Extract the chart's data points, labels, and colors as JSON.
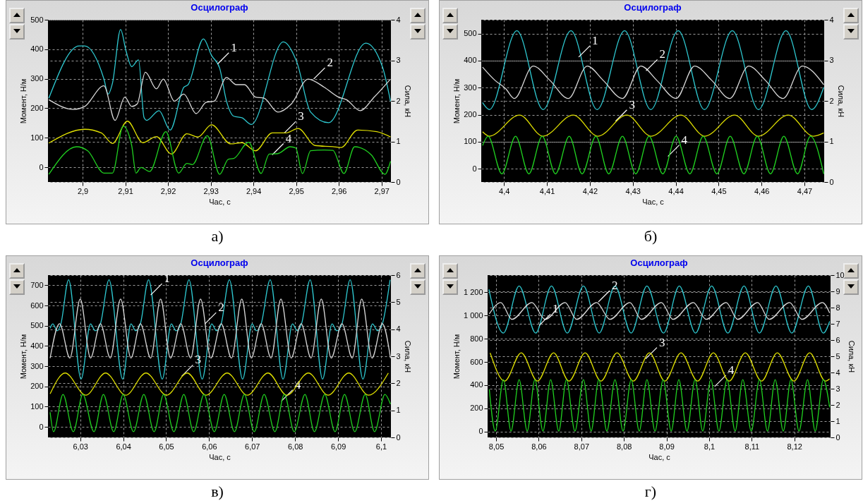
{
  "chart_data": [
    {
      "type": "line",
      "title": "Осцилограф",
      "xlabel": "Час, с",
      "ylabel": "Момент, Н/м",
      "y2label": "Сила, кН",
      "grid": true,
      "line_style": "solid",
      "xlim": [
        2.8919,
        2.9722
      ],
      "xticks": [
        {
          "value": 2.9,
          "label": "2,9"
        },
        {
          "value": 2.91,
          "label": "2,91"
        },
        {
          "value": 2.92,
          "label": "2,92"
        },
        {
          "value": 2.93,
          "label": "2,93"
        },
        {
          "value": 2.94,
          "label": "2,94"
        },
        {
          "value": 2.95,
          "label": "2,95"
        },
        {
          "value": 2.96,
          "label": "2,96"
        },
        {
          "value": 2.97,
          "label": "2,97"
        }
      ],
      "ylim": [
        -50,
        500
      ],
      "yticks": [
        0,
        100,
        200,
        300,
        400,
        500
      ],
      "y2lim": [
        0,
        4
      ],
      "y2ticks": [
        0,
        1,
        2,
        3,
        4
      ],
      "series": [
        {
          "color": "#2ec8d0",
          "x": [
            2.8921,
            2.8992,
            2.9005,
            2.905,
            2.906,
            2.907,
            2.9089,
            2.9102,
            2.9115,
            2.9131,
            2.9144,
            2.915,
            2.9179,
            2.9205,
            2.9237,
            2.9247,
            2.9283,
            2.9302,
            2.9321,
            2.9337,
            2.9354,
            2.9373,
            2.9395,
            2.947,
            2.9502,
            2.9534,
            2.9576,
            2.9663,
            2.9702,
            2.9721
          ],
          "values": [
            234,
            411,
            411,
            299,
            248,
            285,
            467,
            393,
            341,
            364,
            168,
            159,
            192,
            126,
            271,
            280,
            435,
            379,
            336,
            224,
            173,
            168,
            145,
            425,
            355,
            187,
            151,
            421,
            341,
            224
          ]
        },
        {
          "color": "#d8d8d8",
          "x": [
            2.8921,
            2.8979,
            2.9005,
            2.905,
            2.9076,
            2.9099,
            2.9115,
            2.9128,
            2.9147,
            2.9173,
            2.9189,
            2.9215,
            2.9237,
            2.9266,
            2.9289,
            2.9308,
            2.9337,
            2.936,
            2.9379,
            2.9405,
            2.9425,
            2.9457,
            2.9489,
            2.9528,
            2.9566,
            2.9599,
            2.9618,
            2.965,
            2.9683,
            2.9721
          ],
          "values": [
            229,
            196,
            206,
            276,
            159,
            238,
            206,
            215,
            322,
            266,
            299,
            224,
            248,
            182,
            220,
            224,
            304,
            280,
            280,
            238,
            234,
            187,
            215,
            299,
            271,
            238,
            229,
            192,
            238,
            299
          ]
        },
        {
          "color": "#e0e000",
          "axis": "y2",
          "x": [
            2.8921,
            2.9005,
            2.9044,
            2.907,
            2.9105,
            2.9141,
            2.9173,
            2.9208,
            2.9244,
            2.927,
            2.9302,
            2.9347,
            2.9373,
            2.9405,
            2.9444,
            2.9476,
            2.9505,
            2.9544,
            2.9586,
            2.9605,
            2.9644,
            2.9689,
            2.9721
          ],
          "values": [
            0.96,
            1.3,
            1.21,
            0.95,
            1.5,
            0.97,
            1.12,
            0.69,
            1.19,
            1.11,
            1.41,
            0.94,
            0.97,
            0.77,
            1.21,
            1.21,
            1.32,
            0.9,
            0.87,
            0.85,
            1.28,
            1.24,
            1.11
          ]
        },
        {
          "color": "#20d020",
          "axis": "y2",
          "x": [
            2.8921,
            2.8986,
            2.9012,
            2.905,
            2.907,
            2.9095,
            2.9115,
            2.9125,
            2.9137,
            2.9157,
            2.9195,
            2.9225,
            2.9244,
            2.9257,
            2.9292,
            2.9321,
            2.9341,
            2.9354,
            2.9389,
            2.9418,
            2.9437,
            2.9457,
            2.9486,
            2.9499,
            2.9515,
            2.9534,
            2.9566,
            2.9586,
            2.9612,
            2.9637,
            2.9676,
            2.9708,
            2.9721
          ],
          "values": [
            0.19,
            0.87,
            0.77,
            0.22,
            0.22,
            1.38,
            0.9,
            0.22,
            0.36,
            0.26,
            1.24,
            0.22,
            0.46,
            0.43,
            1.14,
            0.19,
            0.56,
            0.58,
            0.98,
            0.21,
            0.69,
            0.7,
            0.87,
            0.84,
            0.21,
            0.77,
            0.79,
            0.78,
            0.21,
            0.87,
            0.67,
            0.19,
            0.51
          ]
        }
      ],
      "annotations": [
        {
          "text": "1",
          "x": 2.9316,
          "y": 350
        },
        {
          "text": "2",
          "x": 2.9541,
          "y": 299
        },
        {
          "text": "3",
          "x": 2.9473,
          "y": 117
        },
        {
          "text": "4",
          "x": 2.9444,
          "y": 42
        },
        "а)"
      ]
    },
    {
      "type": "line",
      "title": "Осцилограф",
      "xlabel": "Час, с",
      "ylabel": "Момент, Н/м",
      "y2label": "Сила, кН",
      "grid": true,
      "line_style": "solid",
      "xlim": [
        4.3947,
        4.4746
      ],
      "xticks": [
        {
          "value": 4.4,
          "label": "4,4"
        },
        {
          "value": 4.41,
          "label": "4,41"
        },
        {
          "value": 4.42,
          "label": "4,42"
        },
        {
          "value": 4.43,
          "label": "4,43"
        },
        {
          "value": 4.44,
          "label": "4,44"
        },
        {
          "value": 4.45,
          "label": "4,45"
        },
        {
          "value": 4.46,
          "label": "4,46"
        },
        {
          "value": 4.47,
          "label": "4,47"
        }
      ],
      "ylim": [
        -49,
        551
      ],
      "yticks": [
        0,
        100,
        200,
        300,
        400,
        500
      ],
      "y2lim": [
        0,
        4
      ],
      "y2ticks": [
        0,
        1,
        2,
        3,
        4
      ],
      "series": [
        {
          "color": "#2ec8d0",
          "x": [
            4.395,
            4.3966,
            4.403,
            4.4091,
            4.4156,
            4.4217,
            4.4281,
            4.4342,
            4.4406,
            4.4467,
            4.4532,
            4.4593,
            4.4657,
            4.4717,
            4.4745
          ],
          "values": [
            245,
            219,
            510,
            219,
            510,
            219,
            510,
            219,
            510,
            219,
            510,
            219,
            510,
            219,
            301
          ]
        },
        {
          "color": "#d8d8d8",
          "x": [
            4.395,
            4.3979,
            4.4004,
            4.4024,
            4.4068,
            4.4107,
            4.415,
            4.4194,
            4.4231,
            4.4276,
            4.4319,
            4.4356,
            4.4401,
            4.4444,
            4.4484,
            4.4526,
            4.457,
            4.4609,
            4.465,
            4.4695,
            4.4745
          ],
          "values": [
            376,
            327,
            296,
            260,
            380,
            327,
            260,
            380,
            327,
            260,
            380,
            327,
            260,
            380,
            327,
            260,
            380,
            327,
            260,
            380,
            311
          ]
        },
        {
          "color": "#e0e000",
          "axis": "y2",
          "x": [
            4.395,
            4.3966,
            4.4036,
            4.4091,
            4.4161,
            4.4219,
            4.4286,
            4.4343,
            4.4412,
            4.4468,
            4.4537,
            4.4593,
            4.4662,
            4.4721,
            4.4745
          ],
          "values": [
            1.24,
            1.13,
            1.65,
            1.13,
            1.65,
            1.13,
            1.65,
            1.13,
            1.65,
            1.13,
            1.65,
            1.13,
            1.65,
            1.13,
            1.21
          ]
        },
        {
          "color": "#20d020",
          "axis": "y2",
          "x": [
            4.395,
            4.3963,
            4.3995,
            4.4027,
            4.4058,
            4.4089,
            4.412,
            4.4152,
            4.4182,
            4.4214,
            4.4244,
            4.4276,
            4.4307,
            4.4338,
            4.437,
            4.4401,
            4.4433,
            4.4464,
            4.4496,
            4.4527,
            4.4559,
            4.459,
            4.4621,
            4.4652,
            4.4684,
            4.4714,
            4.4745
          ],
          "values": [
            0.9,
            1.13,
            0.2,
            1.13,
            0.2,
            1.13,
            0.2,
            1.13,
            0.2,
            1.13,
            0.2,
            1.13,
            0.2,
            1.13,
            0.2,
            1.13,
            0.2,
            1.13,
            0.2,
            1.13,
            0.2,
            1.13,
            0.2,
            1.13,
            0.2,
            1.13,
            0.2
          ]
        }
      ],
      "annotations": [
        {
          "text": "1",
          "x": 4.4174,
          "y": 413
        },
        {
          "text": "2",
          "x": 4.4331,
          "y": 362
        },
        {
          "text": "3",
          "x": 4.426,
          "y": 176
        },
        {
          "text": "4",
          "x": 4.4382,
          "y": 46
        },
        "б)"
      ]
    },
    {
      "type": "line",
      "title": "Осцилограф",
      "xlabel": "Час, с",
      "ylabel": "Момент, Н/м",
      "y2label": "Сила, кН",
      "grid": true,
      "line_style": "solid",
      "xlim": [
        6.0225,
        6.1023
      ],
      "xticks": [
        {
          "value": 6.03,
          "label": "6,03"
        },
        {
          "value": 6.04,
          "label": "6,04"
        },
        {
          "value": 6.05,
          "label": "6,05"
        },
        {
          "value": 6.06,
          "label": "6,06"
        },
        {
          "value": 6.07,
          "label": "6,07"
        },
        {
          "value": 6.08,
          "label": "6,08"
        },
        {
          "value": 6.09,
          "label": "6,09"
        },
        {
          "value": 6.1,
          "label": "6,1"
        }
      ],
      "ylim": [
        -52,
        750
      ],
      "yticks": [
        0,
        100,
        200,
        300,
        400,
        500,
        600,
        700
      ],
      "y2lim": [
        0,
        6
      ],
      "y2ticks": [
        0,
        1,
        2,
        3,
        4,
        5,
        6
      ],
      "series": [
        {
          "color": "#2ec8d0",
          "x": [
            6.023,
            6.0236,
            6.0247,
            6.0255,
            6.0273,
            6.0302,
            6.0324,
            6.0335,
            6.0347,
            6.0367,
            6.0399,
            6.0418,
            6.0429,
            6.044,
            6.0459,
            6.0491,
            6.0512,
            6.0523,
            6.0534,
            6.0553,
            6.0584,
            6.0606,
            6.0617,
            6.0628,
            6.0647,
            6.0678,
            6.07,
            6.071,
            6.0721,
            6.0742,
            6.0772,
            6.0794,
            6.0805,
            6.0815,
            6.0835,
            6.0864,
            6.0886,
            6.0897,
            6.0909,
            6.0928,
            6.0958,
            6.098,
            6.0992,
            6.1003,
            6.1021
          ],
          "values": [
            488,
            509,
            475,
            509,
            727,
            236,
            509,
            475,
            509,
            727,
            236,
            509,
            475,
            509,
            727,
            236,
            509,
            475,
            509,
            727,
            236,
            509,
            475,
            509,
            727,
            236,
            509,
            475,
            509,
            727,
            236,
            509,
            475,
            509,
            727,
            236,
            509,
            475,
            509,
            727,
            236,
            509,
            475,
            509,
            727
          ]
        },
        {
          "color": "#d8d8d8",
          "x": [
            6.023,
            6.0252,
            6.0276,
            6.03,
            6.0324,
            6.0347,
            6.037,
            6.0394,
            6.0418,
            6.044,
            6.0464,
            6.0487,
            6.051,
            6.0534,
            6.0557,
            6.058,
            6.0604,
            6.0628,
            6.0652,
            6.0676,
            6.0698,
            6.0721,
            6.0744,
            6.0767,
            6.0791,
            6.0814,
            6.0837,
            6.0861,
            6.0884,
            6.0909,
            6.0933,
            6.0955,
            6.0979,
            6.1003,
            6.1022
          ],
          "values": [
            340,
            510,
            340,
            632,
            340,
            510,
            340,
            632,
            340,
            510,
            340,
            632,
            340,
            510,
            340,
            632,
            340,
            510,
            340,
            632,
            340,
            510,
            340,
            632,
            340,
            510,
            340,
            632,
            340,
            510,
            340,
            632,
            340,
            510,
            340
          ]
        },
        {
          "color": "#e0e000",
          "axis": "y2",
          "x": [
            6.023,
            6.0265,
            6.0313,
            6.0359,
            6.0406,
            6.0453,
            6.0501,
            6.0549,
            6.0593,
            6.0642,
            6.0689,
            6.0737,
            6.0781,
            6.0831,
            6.0877,
            6.0925,
            6.0971,
            6.1017
          ],
          "values": [
            1.61,
            2.38,
            1.56,
            2.38,
            1.56,
            2.38,
            1.56,
            2.38,
            1.56,
            2.38,
            1.56,
            2.38,
            1.56,
            2.38,
            1.56,
            2.38,
            1.56,
            2.38
          ]
        },
        {
          "color": "#20d020",
          "axis": "y2",
          "x": [
            6.023,
            6.0238,
            6.026,
            6.0284,
            6.0306,
            6.0332,
            6.0354,
            6.0378,
            6.04,
            6.0424,
            6.0448,
            6.0472,
            6.0494,
            6.0518,
            6.0541,
            6.0564,
            6.0588,
            6.0612,
            6.0635,
            6.0659,
            6.0682,
            6.0705,
            6.0728,
            6.0753,
            6.0775,
            6.0798,
            6.0823,
            6.0845,
            6.0869,
            6.0893,
            6.0915,
            6.0939,
            6.0963,
            6.0985,
            6.1009,
            6.1022
          ],
          "values": [
            0.93,
            0.21,
            1.59,
            0.21,
            1.59,
            0.21,
            1.59,
            0.21,
            1.59,
            0.21,
            1.59,
            0.21,
            1.59,
            0.21,
            1.59,
            0.21,
            1.59,
            0.21,
            1.59,
            0.21,
            1.59,
            0.21,
            1.59,
            0.21,
            1.59,
            0.21,
            1.59,
            0.21,
            1.59,
            0.21,
            1.59,
            0.21,
            1.59,
            0.21,
            1.59,
            1.23
          ]
        }
      ],
      "annotations": [
        {
          "text": "1",
          "x": 6.0464,
          "y": 652
        },
        {
          "text": "2",
          "x": 6.059,
          "y": 509
        },
        {
          "text": "3",
          "x": 6.0536,
          "y": 250
        },
        {
          "text": "4",
          "x": 6.0768,
          "y": 127
        },
        "в)"
      ]
    },
    {
      "type": "line",
      "title": "Осцилограф",
      "xlabel": "Час, с",
      "ylabel": "Момент, Н/м",
      "y2label": "Сила, кН",
      "grid": true,
      "line_style": "solid",
      "xlim": [
        8.048,
        8.1285
      ],
      "xticks": [
        {
          "value": 8.05,
          "label": "8,05"
        },
        {
          "value": 8.06,
          "label": "8,06"
        },
        {
          "value": 8.07,
          "label": "8,07"
        },
        {
          "value": 8.08,
          "label": "8,08"
        },
        {
          "value": 8.09,
          "label": "8,09"
        },
        {
          "value": 8.1,
          "label": "8,1"
        },
        {
          "value": 8.11,
          "label": "8,11"
        },
        {
          "value": 8.12,
          "label": "8,12"
        }
      ],
      "ylim": [
        -50,
        1348
      ],
      "yticks": [
        0,
        200,
        400,
        600,
        800,
        {
          "value": 1000,
          "label": "1 000"
        },
        {
          "value": 1200,
          "label": "1 200"
        }
      ],
      "y2lim": [
        0,
        10
      ],
      "y2ticks": [
        0,
        1,
        2,
        3,
        4,
        5,
        6,
        7,
        8,
        9,
        10
      ],
      "series": [
        {
          "color": "#2ec8d0",
          "x": [
            8.0483,
            8.0517,
            8.0554,
            8.0593,
            8.063,
            8.0667,
            8.0705,
            8.0742,
            8.0779,
            8.0817,
            8.0854,
            8.0893,
            8.093,
            8.0968,
            8.1006,
            8.1044,
            8.1082,
            8.1118,
            8.1157,
            8.1194,
            8.1233,
            8.1268,
            8.1283
          ],
          "values": [
            1225,
            849,
            1254,
            849,
            1254,
            849,
            1254,
            849,
            1254,
            849,
            1254,
            849,
            1254,
            849,
            1254,
            849,
            1254,
            849,
            1254,
            849,
            1254,
            849,
            950
          ]
        },
        {
          "color": "#d8d8d8",
          "x": [
            8.0484,
            8.0511,
            8.0537,
            8.0584,
            8.0615,
            8.0662,
            8.0689,
            8.0736,
            8.0767,
            8.0814,
            8.0841,
            8.0888,
            8.0915,
            8.0963,
            8.0993,
            8.104,
            8.1067,
            8.1114,
            8.1141,
            8.1189,
            8.1218,
            8.1266,
            8.1283
          ],
          "values": [
            1014,
            1112,
            967,
            1112,
            967,
            1112,
            967,
            1112,
            967,
            1112,
            967,
            1112,
            967,
            1112,
            967,
            1112,
            967,
            1112,
            967,
            1112,
            967,
            1112,
            1022
          ]
        },
        {
          "color": "#e0e000",
          "axis": "y2",
          "x": [
            8.0486,
            8.052,
            8.0559,
            8.0597,
            8.0635,
            8.0671,
            8.0709,
            8.0746,
            8.0784,
            8.0822,
            8.086,
            8.0896,
            8.0934,
            8.0973,
            8.101,
            8.1047,
            8.1085,
            8.1123,
            8.116,
            8.1199,
            8.1236,
            8.1273,
            8.1283
          ],
          "values": [
            5.21,
            3.47,
            5.21,
            3.47,
            5.21,
            3.47,
            5.21,
            3.47,
            5.21,
            3.47,
            5.21,
            3.47,
            5.21,
            3.47,
            5.21,
            3.47,
            5.21,
            3.47,
            5.21,
            3.47,
            5.21,
            3.47,
            3.61
          ]
        },
        {
          "color": "#20d020",
          "axis": "y2",
          "x": [
            8.0484,
            8.0498,
            8.0517,
            8.0535,
            8.0554,
            8.0573,
            8.0591,
            8.061,
            8.0628,
            8.0647,
            8.0665,
            8.0685,
            8.0705,
            8.0723,
            8.0741,
            8.076,
            8.0779,
            8.0798,
            8.0817,
            8.0836,
            8.0854,
            8.0873,
            8.0892,
            8.0911,
            8.0929,
            8.0948,
            8.0967,
            8.0985,
            8.1004,
            8.1023,
            8.1042,
            8.1061,
            8.1079,
            8.1099,
            8.1118,
            8.1137,
            8.1155,
            8.1174,
            8.1192,
            8.1211,
            8.1231,
            8.1249,
            8.1268,
            8.1283
          ],
          "values": [
            2.96,
            0.39,
            3.56,
            0.39,
            3.56,
            0.39,
            3.56,
            0.39,
            3.56,
            0.39,
            3.56,
            0.39,
            3.56,
            0.39,
            3.56,
            0.39,
            3.56,
            0.39,
            3.56,
            0.39,
            3.56,
            0.39,
            3.56,
            0.39,
            3.56,
            0.39,
            3.56,
            0.39,
            3.56,
            0.39,
            3.56,
            0.39,
            3.56,
            0.39,
            3.56,
            0.39,
            3.56,
            0.39,
            3.56,
            0.39,
            3.56,
            0.39,
            3.56,
            1.85
          ]
        }
      ],
      "annotations": [
        {
          "text": "1",
          "x": 8.0601,
          "y": 914
        },
        {
          "text": "2",
          "x": 8.074,
          "y": 1117
        },
        {
          "text": "3",
          "x": 8.0851,
          "y": 627
        },
        {
          "text": "4",
          "x": 8.1013,
          "y": 388
        },
        "г)"
      ]
    }
  ]
}
